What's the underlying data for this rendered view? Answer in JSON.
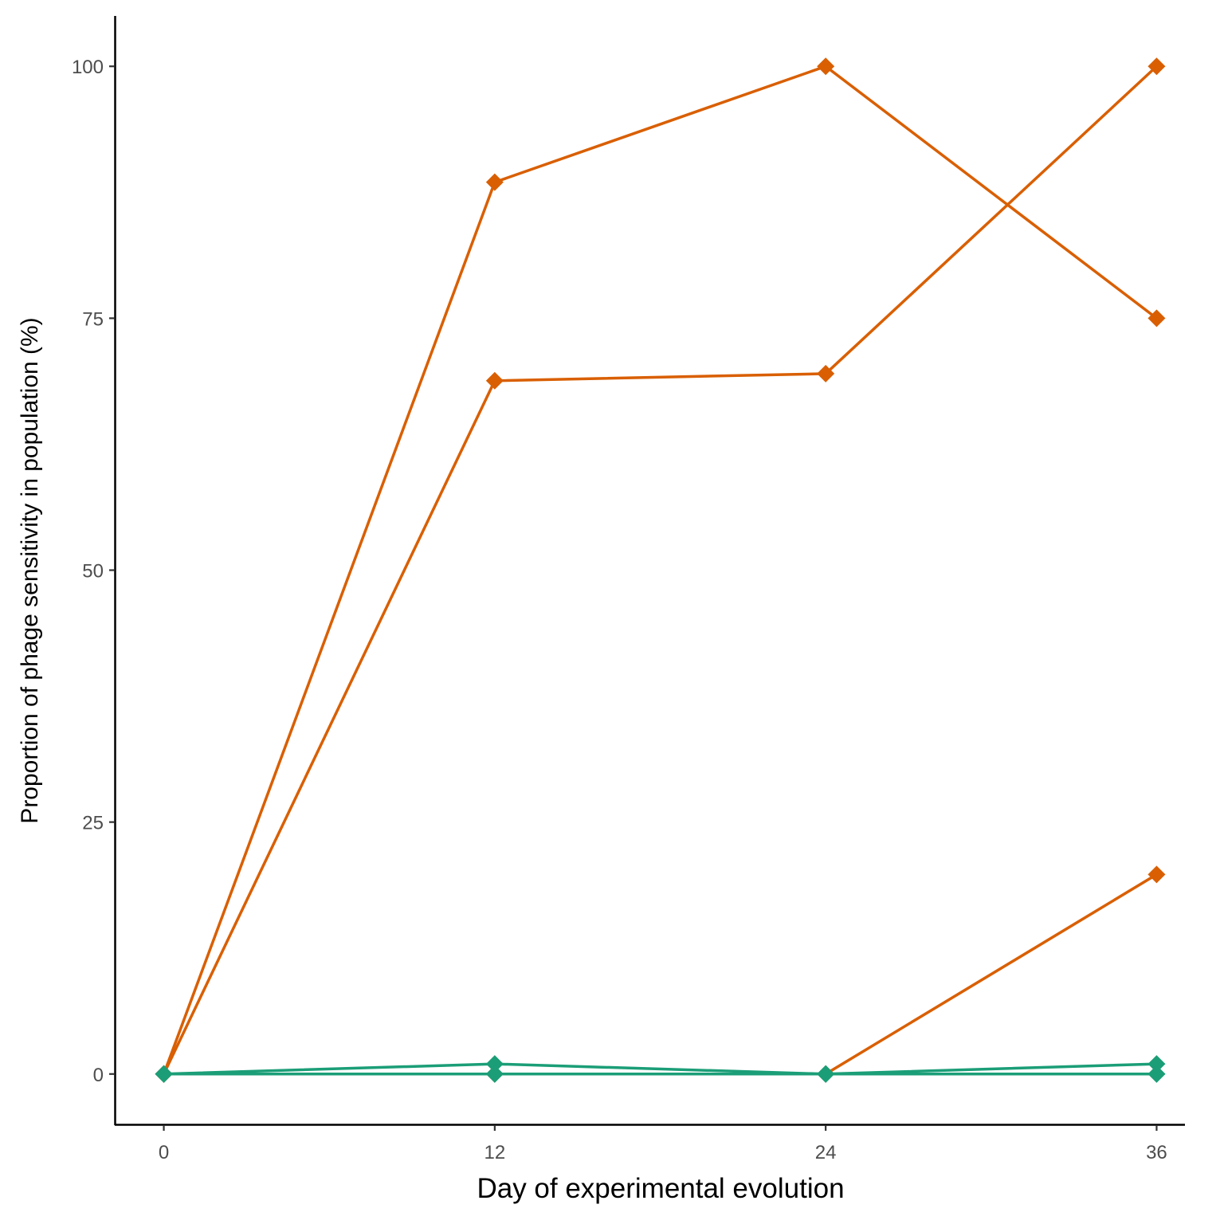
{
  "chart_data": {
    "type": "line",
    "title": "",
    "xlabel": "Day of experimental evolution",
    "ylabel": "Proportion of phage sensitivity in population (%)",
    "x": [
      0,
      12,
      24,
      36
    ],
    "x_ticks": [
      "0",
      "12",
      "24",
      "36"
    ],
    "y_ticks": [
      "0",
      "25",
      "50",
      "75",
      "100"
    ],
    "xlim": [
      -1.75,
      37.75
    ],
    "ylim": [
      -5,
      105
    ],
    "grid": false,
    "legend": "none",
    "marker": "diamond",
    "series": [
      {
        "color": "#D95F02",
        "values": [
          0,
          88.5,
          100,
          75
        ]
      },
      {
        "color": "#D95F02",
        "values": [
          0,
          68.8,
          69.5,
          100
        ]
      },
      {
        "color": "#D95F02",
        "values": [
          0,
          0,
          0,
          19.8
        ]
      },
      {
        "color": "#1B9E77",
        "values": [
          0,
          1,
          0,
          1
        ]
      },
      {
        "color": "#1B9E77",
        "values": [
          0,
          0,
          0,
          0
        ]
      },
      {
        "color": "#1B9E77",
        "values": [
          0,
          0,
          0,
          0
        ]
      }
    ]
  }
}
